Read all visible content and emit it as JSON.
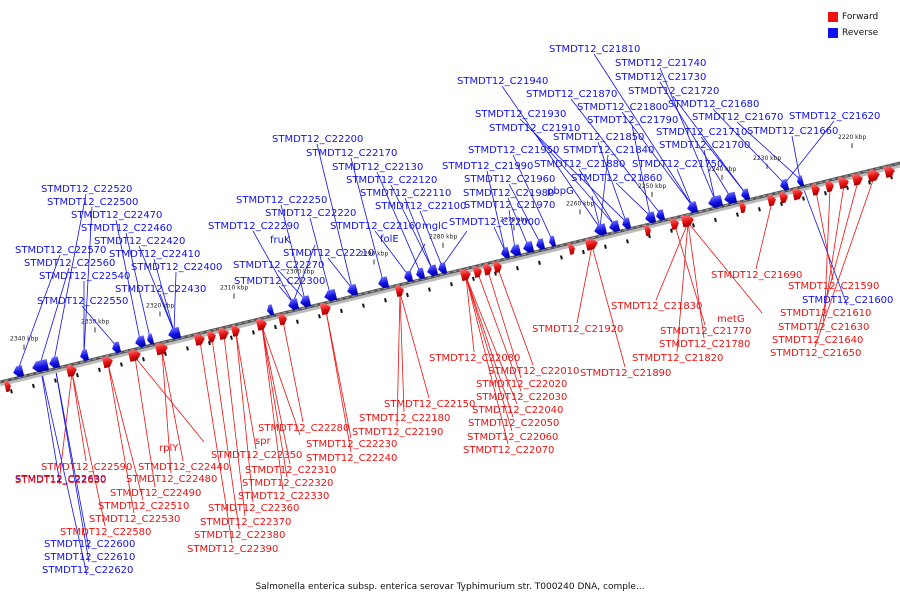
{
  "legend": {
    "forward": {
      "label": "Forward",
      "color": "#ee1111"
    },
    "reverse": {
      "label": "Reverse",
      "color": "#1111ee"
    }
  },
  "caption": "Salmonella enterica subsp. enterica serovar Typhimurium str. T000240 DNA, comple...",
  "axis_ticks": [
    "2220 kbp",
    "2230 kbp",
    "2240 kbp",
    "2250 kbp",
    "2260 kbp",
    "2270 kbp",
    "2280 kbp",
    "2290 kbp",
    "2300 kbp",
    "2310 kbp",
    "2320 kbp",
    "2330 kbp",
    "2340 kbp"
  ],
  "reverse_labels": [
    "STMDT12_C21810",
    "STMDT12_C21740",
    "STMDT12_C21730",
    "STMDT12_C21940",
    "STMDT12_C21870",
    "STMDT12_C21720",
    "STMDT12_C21800",
    "STMDT12_C21680",
    "STMDT12_C21930",
    "STMDT12_C21790",
    "STMDT12_C21670",
    "STMDT12_C21620",
    "STMDT12_C21910",
    "STMDT12_C21710",
    "STMDT12_C21660",
    "STMDT12_C22200",
    "STMDT12_C21850",
    "STMDT12_C21700",
    "STMDT12_C21950",
    "STMDT12_C21840",
    "STMDT12_C22170",
    "STMDT12_C21990",
    "STMDT12_C21880",
    "STMDT12_C21750",
    "STMDT12_C22130",
    "STMDT12_C21960",
    "STMDT12_C21860",
    "STMDT12_C22520",
    "STMDT12_C22120",
    "STMDT12_C21980",
    "pbpG",
    "STMDT12_C22500",
    "STMDT12_C22110",
    "STMDT12_C21970",
    "STMDT12_C22250",
    "STMDT12_C22470",
    "STMDT12_C22100",
    "STMDT12_C22220",
    "STMDT12_C22460",
    "STMDT12_C22290",
    "STMDT12_C22160",
    "mglC",
    "STMDT12_C22000",
    "STMDT12_C22420",
    "fruK",
    "folE",
    "STMDT12_C22570",
    "STMDT12_C22410",
    "STMDT12_C22210",
    "STMDT12_C22560",
    "STMDT12_C22400",
    "STMDT12_C22270",
    "STMDT12_C22540",
    "STMDT12_C22300",
    "STMDT12_C22430",
    "STMDT12_C22550",
    "STMDT12_C22630",
    "STMDT12_C22600",
    "STMDT12_C22610",
    "STMDT12_C22620",
    "STMDT12_C21600"
  ],
  "forward_labels": [
    "STMDT12_C21690",
    "STMDT12_C21590",
    "STMDT12_C21610",
    "STMDT12_C21830",
    "metG",
    "STMDT12_C21630",
    "STMDT12_C21920",
    "STMDT12_C21770",
    "STMDT12_C21640",
    "STMDT12_C21780",
    "STMDT12_C21650",
    "STMDT12_C22080",
    "STMDT12_C21820",
    "STMDT12_C22010",
    "STMDT12_C21890",
    "STMDT12_C22020",
    "STMDT12_C22030",
    "STMDT12_C22150",
    "STMDT12_C22040",
    "STMDT12_C22180",
    "STMDT12_C22050",
    "STMDT12_C22190",
    "STMDT12_C22060",
    "STMDT12_C22280",
    "STMDT12_C22230",
    "STMDT12_C22070",
    "rplY",
    "spr",
    "STMDT12_C22240",
    "STMDT12_C22350",
    "STMDT12_C22590",
    "STMDT12_C22440",
    "STMDT12_C22310",
    "STMDT12_C22630",
    "STMDT12_C22480",
    "STMDT12_C22320",
    "STMDT12_C22490",
    "STMDT12_C22330",
    "STMDT12_C22510",
    "STMDT12_C22360",
    "STMDT12_C22530",
    "STMDT12_C22370",
    "STMDT12_C22580",
    "STMDT12_C22380",
    "STMDT12_C22390"
  ]
}
